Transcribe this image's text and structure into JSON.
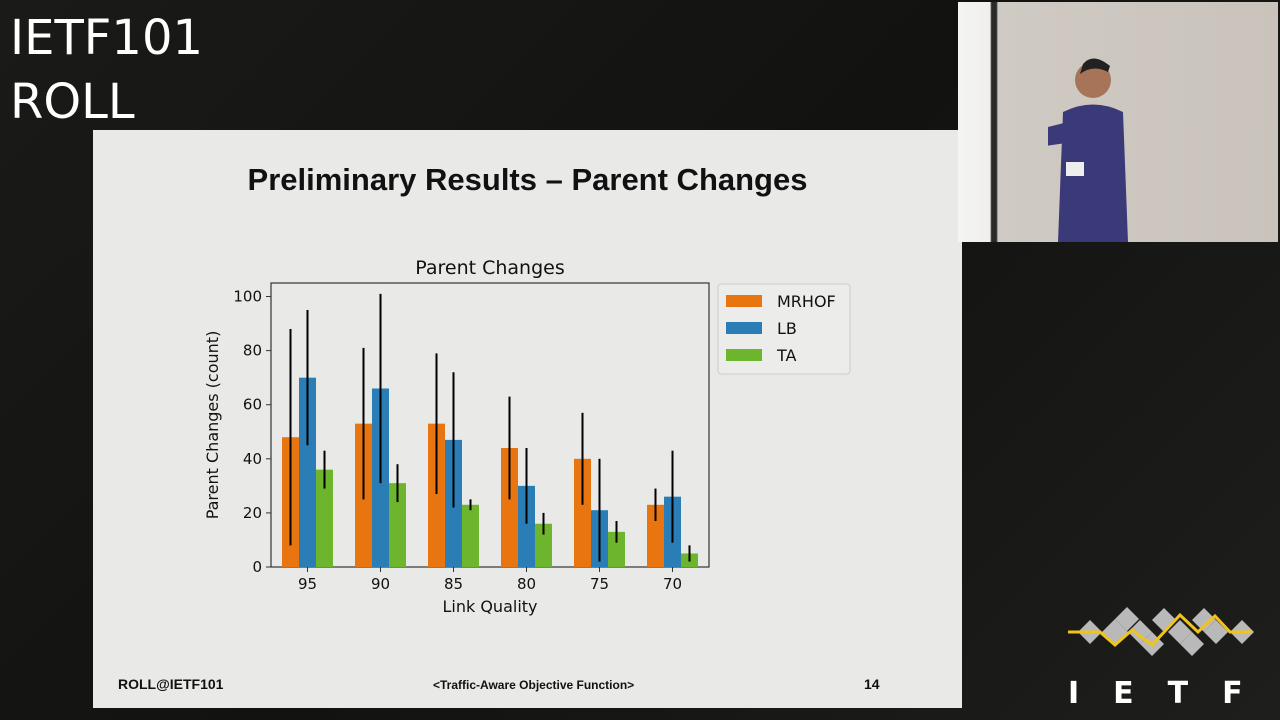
{
  "overlay": {
    "line1": "IETF101",
    "line2": "ROLL"
  },
  "slide": {
    "title": "Preliminary Results – Parent Changes",
    "footer_left": "ROLL@IETF101",
    "footer_center": "<Traffic-Aware Objective Function>",
    "page_number": "14"
  },
  "logo": {
    "text": "I E T F",
    "mark": "®"
  },
  "chart_data": {
    "type": "bar",
    "title": "Parent Changes",
    "xlabel": "Link Quality",
    "ylabel": "Parent Changes (count)",
    "categories": [
      "95",
      "90",
      "85",
      "80",
      "75",
      "70"
    ],
    "ylim": [
      0,
      105
    ],
    "yticks": [
      0,
      20,
      40,
      60,
      80,
      100
    ],
    "legend_position": "outside-top-right",
    "grid": false,
    "series": [
      {
        "name": "MRHOF",
        "color": "#e8750f",
        "values": [
          48,
          53,
          53,
          44,
          40,
          23
        ],
        "err_low": [
          8,
          25,
          27,
          25,
          23,
          17
        ],
        "err_high": [
          88,
          81,
          79,
          63,
          57,
          29
        ]
      },
      {
        "name": "LB",
        "color": "#2a7db5",
        "values": [
          70,
          66,
          47,
          30,
          21,
          26
        ],
        "err_low": [
          45,
          31,
          22,
          16,
          2,
          9
        ],
        "err_high": [
          95,
          101,
          72,
          44,
          40,
          43
        ]
      },
      {
        "name": "TA",
        "color": "#6cb52c",
        "values": [
          36,
          31,
          23,
          16,
          13,
          5
        ],
        "err_low": [
          29,
          24,
          21,
          12,
          9,
          2
        ],
        "err_high": [
          43,
          38,
          25,
          20,
          17,
          8
        ]
      }
    ]
  }
}
